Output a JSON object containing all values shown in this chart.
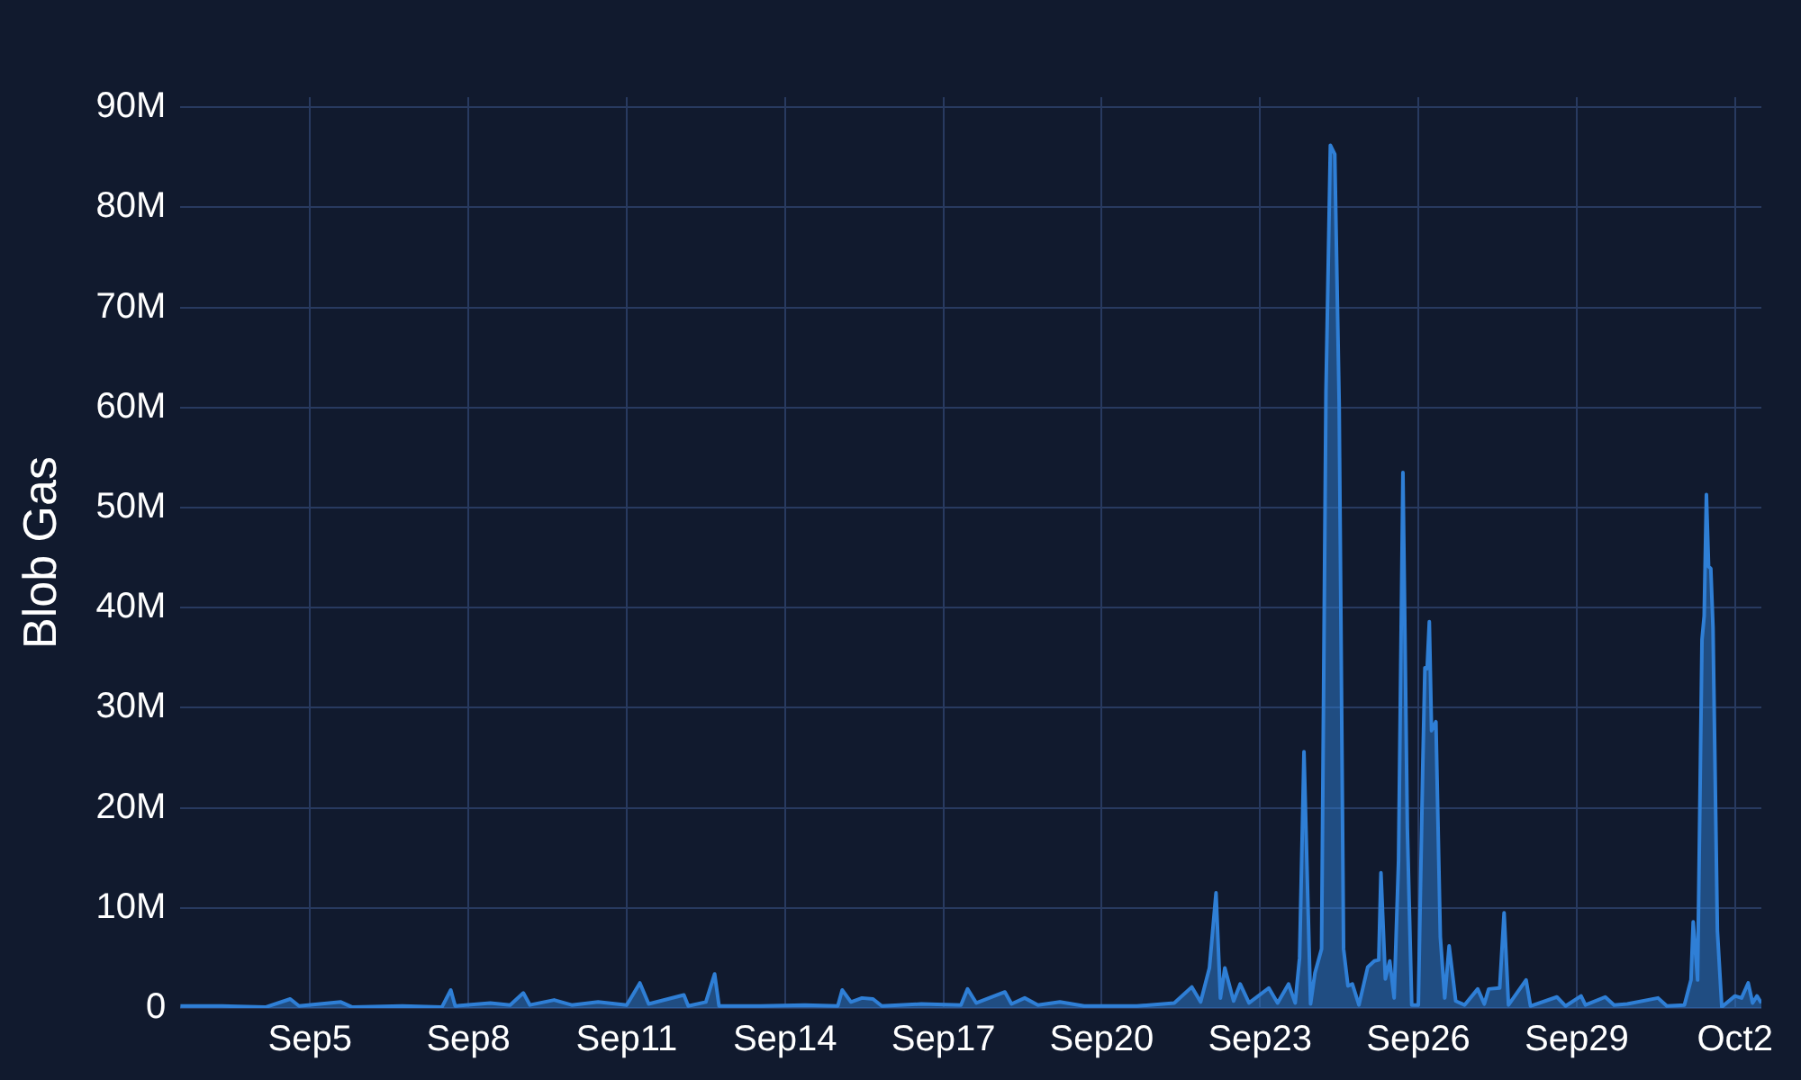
{
  "chart_data": {
    "type": "area",
    "ylabel": "Blob Gas",
    "x": [
      "--09-02T13:00",
      "--09-03T08:00",
      "--09-04T04:00",
      "--09-04T15:00",
      "--09-04T19:00",
      "--09-05T14:00",
      "--09-05T19:00",
      "--09-06T18:00",
      "--09-07T12:00",
      "--09-07T16:00",
      "--09-07T18:00",
      "--09-08T10:00",
      "--09-08T19:00",
      "--09-09T01:00",
      "--09-09T04:00",
      "--09-09T15:00",
      "--09-09T23:00",
      "--09-10T11:00",
      "--09-11T00:00",
      "--09-11T06:00",
      "--09-11T10:00",
      "--09-12T02:00",
      "--09-12T04:00",
      "--09-12T12:00",
      "--09-12T16:00",
      "--09-12T18:00",
      "--09-13T13:00",
      "--09-14T09:00",
      "--09-15T00:00",
      "--09-15T02:00",
      "--09-15T06:00",
      "--09-15T11:00",
      "--09-15T16:00",
      "--09-15T20:00",
      "--09-16T14:00",
      "--09-17T08:00",
      "--09-17T11:00",
      "--09-17T15:00",
      "--09-18T04:00",
      "--09-18T07:00",
      "--09-18T13:00",
      "--09-18T19:00",
      "--09-19T05:00",
      "--09-19T16:00",
      "--09-20T16:00",
      "--09-21T09:00",
      "--09-21T17:00",
      "--09-21T21:00",
      "--09-22T01:00",
      "--09-22T04:00",
      "--09-22T06:00",
      "--09-22T08:00",
      "--09-22T12:00",
      "--09-22T15:00",
      "--09-22T19:00",
      "--09-23T04:00",
      "--09-23T08:00",
      "--09-23T13:00",
      "--09-23T16:00",
      "--09-23T18:00",
      "--09-23T20:00",
      "--09-23T23:00",
      "--09-24T01:00",
      "--09-24T04:00",
      "--09-24T06:00",
      "--09-24T08:00",
      "--09-24T10:00",
      "--09-24T12:00",
      "--09-24T14:00",
      "--09-24T16:00",
      "--09-24T18:00",
      "--09-24T21:00",
      "--09-25T01:00",
      "--09-25T04:00",
      "--09-25T06:00",
      "--09-25T07:00",
      "--09-25T09:00",
      "--09-25T11:00",
      "--09-25T13:00",
      "--09-25T15:00",
      "--09-25T17:00",
      "--09-25T19:00",
      "--09-25T21:00",
      "--09-26T00:00",
      "--09-26T02:00",
      "--09-26T03:00",
      "--09-26T04:00",
      "--09-26T05:00",
      "--09-26T06:00",
      "--09-26T08:00",
      "--09-26T10:00",
      "--09-26T12:00",
      "--09-26T14:00",
      "--09-26T17:00",
      "--09-26T21:00",
      "--09-27T03:00",
      "--09-27T06:00",
      "--09-27T08:00",
      "--09-27T13:00",
      "--09-27T15:00",
      "--09-27T17:00",
      "--09-28T01:00",
      "--09-28T03:00",
      "--09-28T15:00",
      "--09-28T19:00",
      "--09-29T02:00",
      "--09-29T04:00",
      "--09-29T13:00",
      "--09-29T17:00",
      "--09-29T23:00",
      "--09-30T13:00",
      "--09-30T17:00",
      "--10-01T01:00",
      "--10-01T04:00",
      "--10-01T05:00",
      "--10-01T07:00",
      "--10-01T09:00",
      "--10-01T10:00",
      "--10-01T11:00",
      "--10-01T12:00",
      "--10-01T13:00",
      "--10-01T14:00",
      "--10-01T16:00",
      "--10-01T18:00",
      "--10-02T00:00",
      "--10-02T03:00",
      "--10-02T06:00",
      "--10-02T08:00",
      "--10-02T10:00",
      "--10-02T12:00"
    ],
    "series": [
      {
        "color": "#2f7fd6",
        "values": [
          0.2,
          0.2,
          0.1,
          0.9,
          0.2,
          0.6,
          0.1,
          0.2,
          0.1,
          1.8,
          0.2,
          0.5,
          0.3,
          1.5,
          0.3,
          0.8,
          0.3,
          0.6,
          0.3,
          2.5,
          0.4,
          1.3,
          0.2,
          0.6,
          3.4,
          0.2,
          0.2,
          0.3,
          0.2,
          1.8,
          0.6,
          1.0,
          0.9,
          0.2,
          0.4,
          0.3,
          1.9,
          0.5,
          1.6,
          0.4,
          1.0,
          0.3,
          0.6,
          0.2,
          0.2,
          0.5,
          2.1,
          0.6,
          4.0,
          11.5,
          1.0,
          4.0,
          0.7,
          2.4,
          0.5,
          2.0,
          0.5,
          2.4,
          0.5,
          5.0,
          25.6,
          0.4,
          3.5,
          5.9,
          61.6,
          86.2,
          85.3,
          60.4,
          5.9,
          2.2,
          2.4,
          0.3,
          4.1,
          4.7,
          4.8,
          13.5,
          2.9,
          4.7,
          1.0,
          14.7,
          53.5,
          18.0,
          0.3,
          0.3,
          24.0,
          34.0,
          33.9,
          38.6,
          27.7,
          28.6,
          7.1,
          1.0,
          6.2,
          0.7,
          0.3,
          1.9,
          0.4,
          1.9,
          2.0,
          9.5,
          0.3,
          2.8,
          0.2,
          1.1,
          0.2,
          1.2,
          0.3,
          1.1,
          0.3,
          0.4,
          1.0,
          0.2,
          0.3,
          2.8,
          8.6,
          2.8,
          36.8,
          39.2,
          51.3,
          44.1,
          43.9,
          38.0,
          7.7,
          0.1,
          1.2,
          1.0,
          2.5,
          0.5,
          1.2,
          0.5
        ]
      }
    ],
    "xlim": [
      "--09-02T13:00",
      "--10-02T12:00"
    ],
    "xticks": [
      {
        "value": "--09-05",
        "label": "Sep5"
      },
      {
        "value": "--09-08",
        "label": "Sep8"
      },
      {
        "value": "--09-11",
        "label": "Sep11"
      },
      {
        "value": "--09-14",
        "label": "Sep14"
      },
      {
        "value": "--09-17",
        "label": "Sep17"
      },
      {
        "value": "--09-20",
        "label": "Sep20"
      },
      {
        "value": "--09-23",
        "label": "Sep23"
      },
      {
        "value": "--09-26",
        "label": "Sep26"
      },
      {
        "value": "--09-29",
        "label": "Sep29"
      },
      {
        "value": "--10-02",
        "label": "Oct2"
      }
    ],
    "ylim": [
      0,
      91
    ],
    "yticks": [
      0,
      {
        "value": 10,
        "label": "10M"
      },
      {
        "value": 20,
        "label": "20M"
      },
      {
        "value": 30,
        "label": "30M"
      },
      {
        "value": 40,
        "label": "40M"
      },
      {
        "value": 50,
        "label": "50M"
      },
      {
        "value": 60,
        "label": "60M"
      },
      {
        "value": 70,
        "label": "70M"
      },
      {
        "value": 80,
        "label": "80M"
      },
      {
        "value": 90,
        "label": "90M"
      }
    ],
    "grid": true,
    "legend": false
  }
}
